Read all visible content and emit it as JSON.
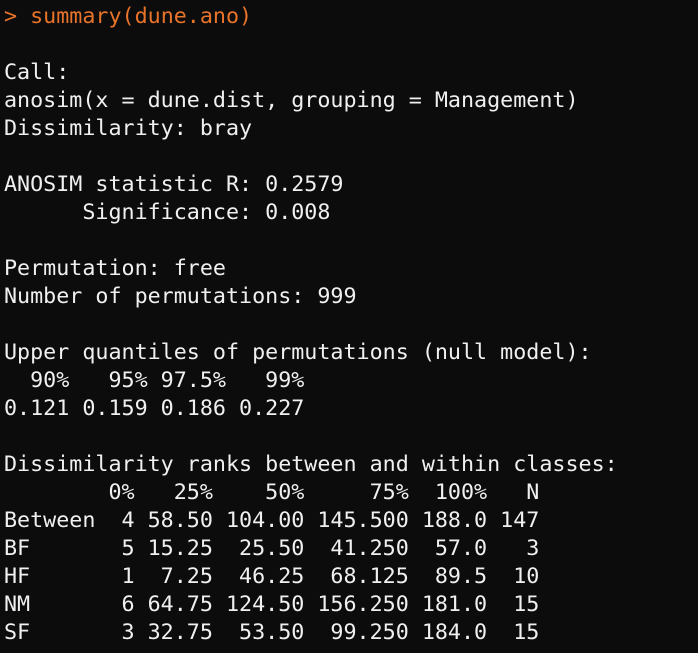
{
  "console": {
    "prompt": "> ",
    "command": "summary(dune.ano)",
    "colors": {
      "background": "#0c0c0c",
      "text": "#f0f0f0",
      "command": "#e8732a"
    },
    "output_lines": [
      "",
      "Call:",
      "anosim(x = dune.dist, grouping = Management)",
      "Dissimilarity: bray",
      "",
      "ANOSIM statistic R: 0.2579",
      "      Significance: 0.008",
      "",
      "Permutation: free",
      "Number of permutations: 999",
      "",
      "Upper quantiles of permutations (null model):",
      "  90%   95% 97.5%   99%",
      "0.121 0.159 0.186 0.227",
      "",
      "Dissimilarity ranks between and within classes:",
      "        0%   25%    50%     75%  100%   N",
      "Between  4 58.50 104.00 145.500 188.0 147",
      "BF       5 15.25  25.50  41.250  57.0   3",
      "HF       1  7.25  46.25  68.125  89.5  10",
      "NM       6 64.75 124.50 156.250 181.0  15",
      "SF       3 32.75  53.50  99.250 184.0  15"
    ]
  }
}
